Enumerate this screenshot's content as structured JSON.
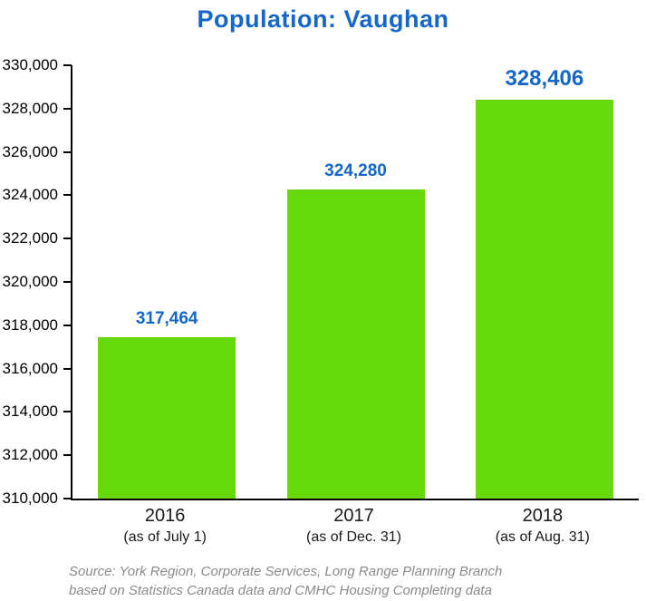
{
  "colors": {
    "accent": "#1566c9",
    "bar": "#65d90b",
    "axis": "#000000",
    "source_text": "#8a8a8a"
  },
  "source_lines": [
    "Source: York Region, Corporate Services, Long Range Planning Branch",
    "based on Statistics Canada data and CMHC Housing Completing data"
  ],
  "chart_data": {
    "type": "bar",
    "title": "Population: Vaughan",
    "categories": [
      "2016",
      "2017",
      "2018"
    ],
    "category_sublabels": [
      "(as of July 1)",
      "(as of Dec. 31)",
      "(as of Aug. 31)"
    ],
    "values": [
      317464,
      324280,
      328406
    ],
    "value_labels": [
      "317,464",
      "324,280",
      "328,406"
    ],
    "emphasized_value_index": 2,
    "xlabel": "",
    "ylabel": "",
    "ylim": [
      310000,
      330000
    ],
    "ytick_step": 2000,
    "ytick_labels": [
      "310,000",
      "312,000",
      "314,000",
      "316,000",
      "318,000",
      "320,000",
      "322,000",
      "324,000",
      "326,000",
      "328,000",
      "330,000"
    ],
    "grid": false,
    "legend": false,
    "bar_color": "#65d90b",
    "value_label_color": "#1566c9"
  }
}
